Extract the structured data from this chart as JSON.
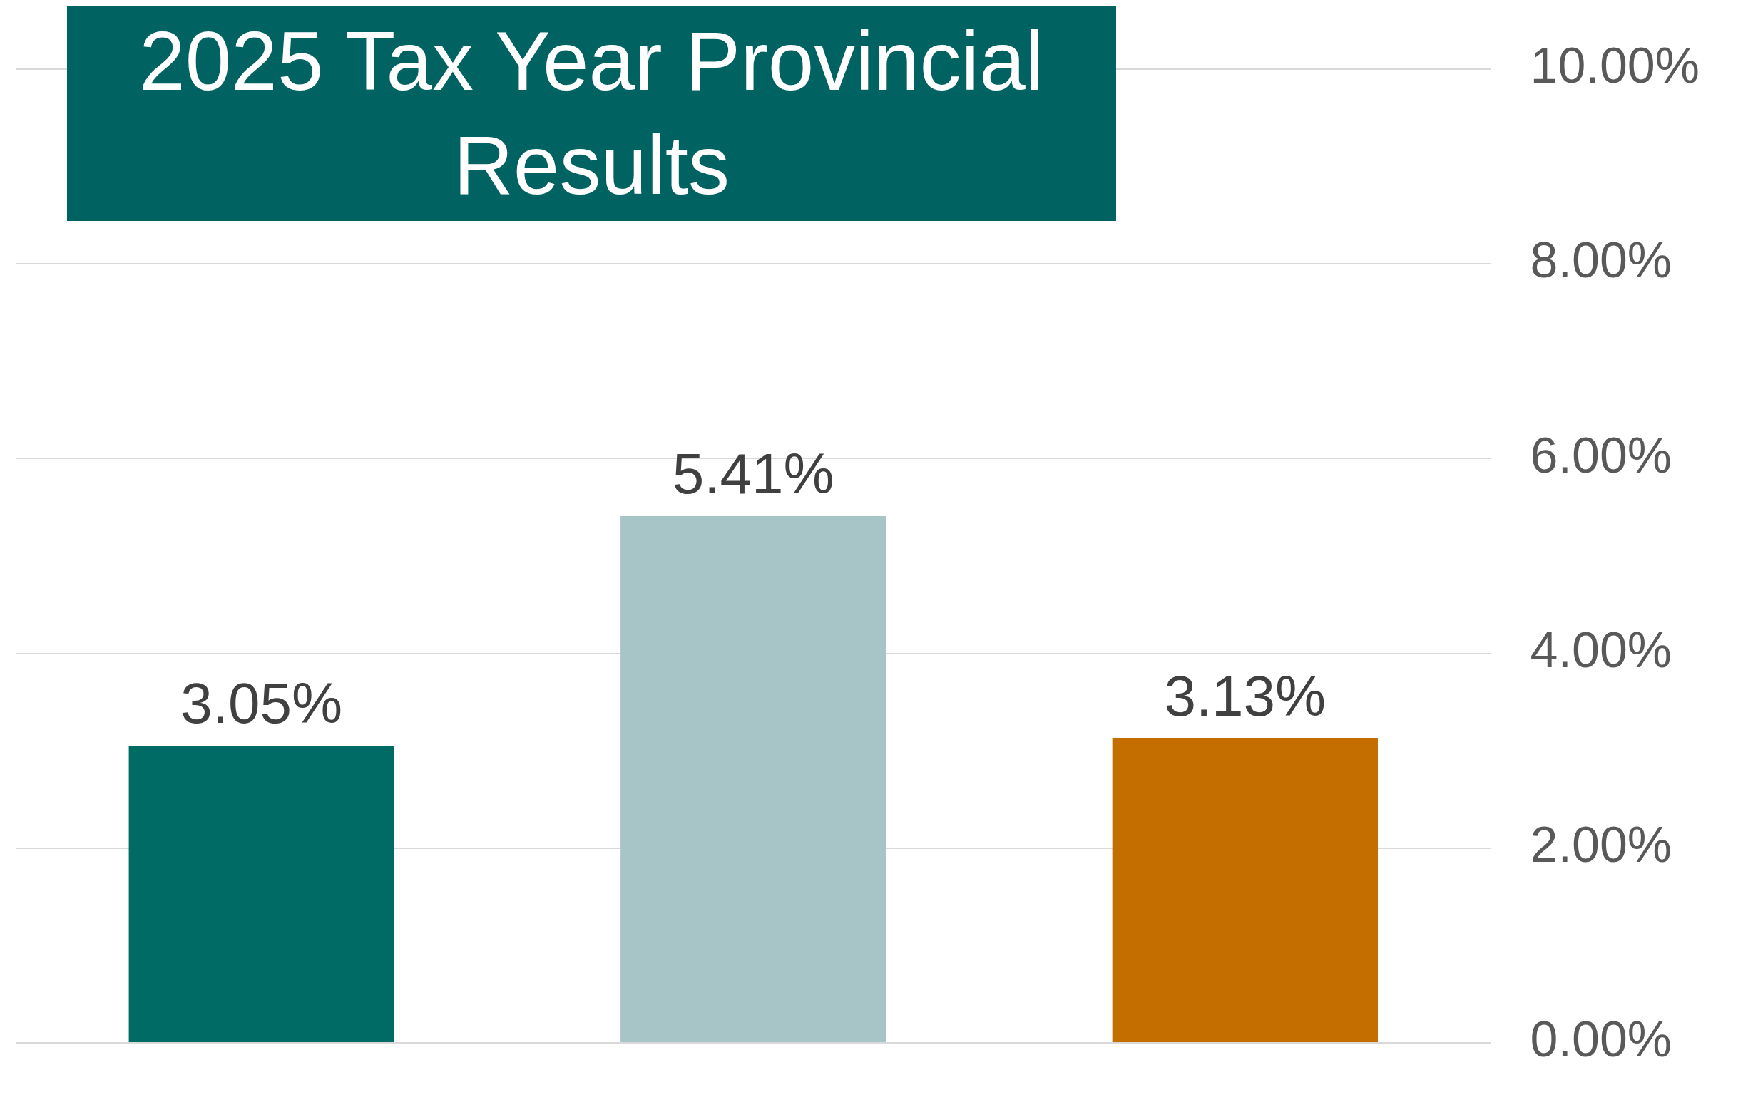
{
  "chart_data": {
    "type": "bar",
    "title": "2025 Tax Year Provincial Results",
    "categories": [
      null,
      null,
      null
    ],
    "values": [
      3.05,
      5.41,
      3.13
    ],
    "colors": [
      "#006a64",
      "#a7c5c7",
      "#c46e00"
    ],
    "value_labels": [
      "3.05%",
      "5.41%",
      "3.13%"
    ],
    "ylim": [
      0,
      10
    ],
    "yticks": [
      {
        "value": 0,
        "label": "0.00%"
      },
      {
        "value": 2,
        "label": "2.00%"
      },
      {
        "value": 4,
        "label": "4.00%"
      },
      {
        "value": 6,
        "label": "6.00%"
      },
      {
        "value": 8,
        "label": "8.00%"
      },
      {
        "value": 10,
        "label": "10.00%"
      }
    ],
    "grid": "y",
    "tick_labels": "y"
  }
}
